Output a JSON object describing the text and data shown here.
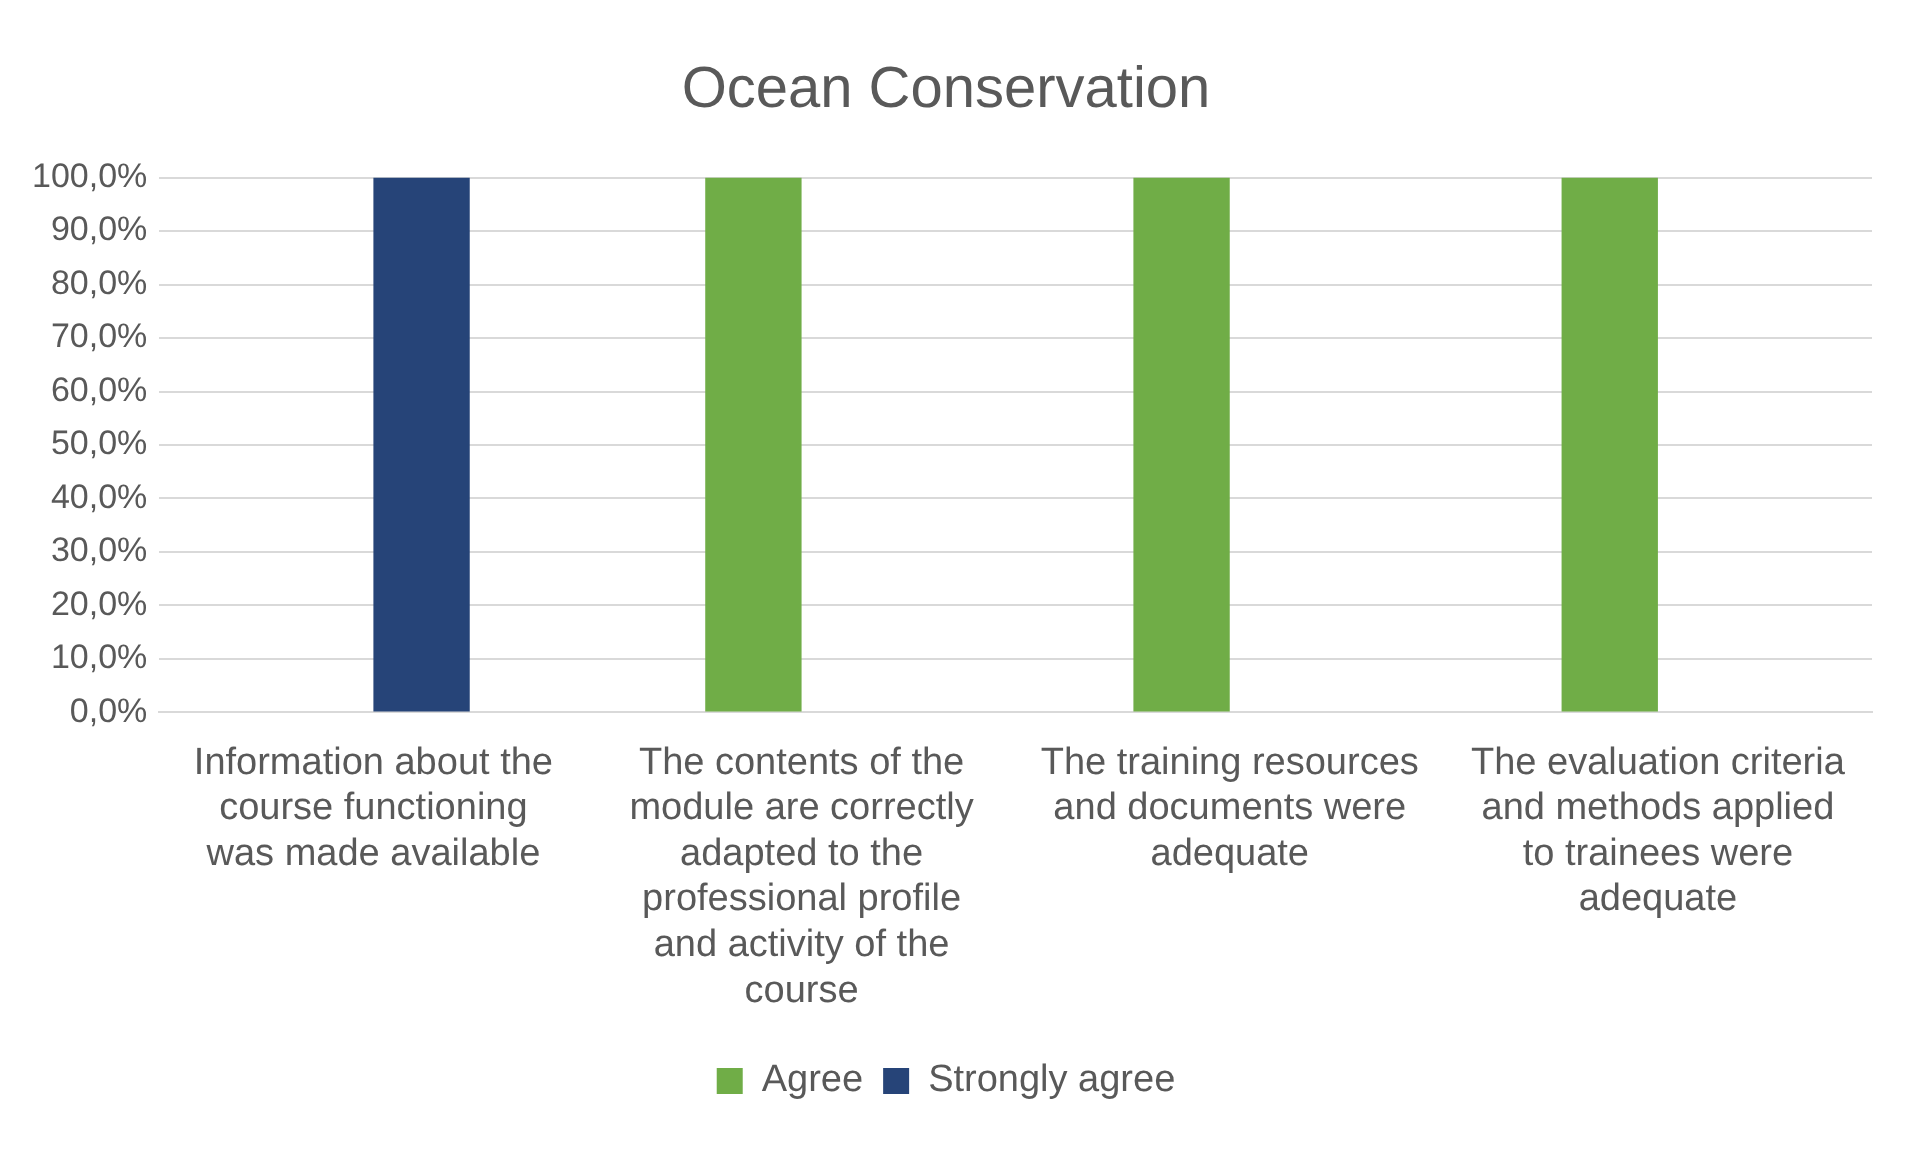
{
  "chart_data": {
    "type": "bar",
    "title": "Ocean Conservation",
    "categories": [
      "Information about the course functioning was made available",
      "The contents of the module are correctly adapted to the professional profile and activity of the course",
      "The training resources and documents were adequate",
      "The evaluation criteria and methods applied to trainees were adequate"
    ],
    "series": [
      {
        "name": "Agree",
        "color": "#70ad47",
        "values": [
          0,
          100,
          100,
          100
        ]
      },
      {
        "name": "Strongly agree",
        "color": "#264478",
        "values": [
          100,
          0,
          0,
          0
        ]
      }
    ],
    "ylim": [
      0,
      100
    ],
    "yticks": [
      {
        "value": 0,
        "label": "0,0%"
      },
      {
        "value": 10,
        "label": "10,0%"
      },
      {
        "value": 20,
        "label": "20,0%"
      },
      {
        "value": 30,
        "label": "30,0%"
      },
      {
        "value": 40,
        "label": "40,0%"
      },
      {
        "value": 50,
        "label": "50,0%"
      },
      {
        "value": 60,
        "label": "60,0%"
      },
      {
        "value": 70,
        "label": "70,0%"
      },
      {
        "value": 80,
        "label": "80,0%"
      },
      {
        "value": 90,
        "label": "90,0%"
      },
      {
        "value": 100,
        "label": "100,0%"
      }
    ],
    "grid": "y",
    "legend": "bottom"
  }
}
